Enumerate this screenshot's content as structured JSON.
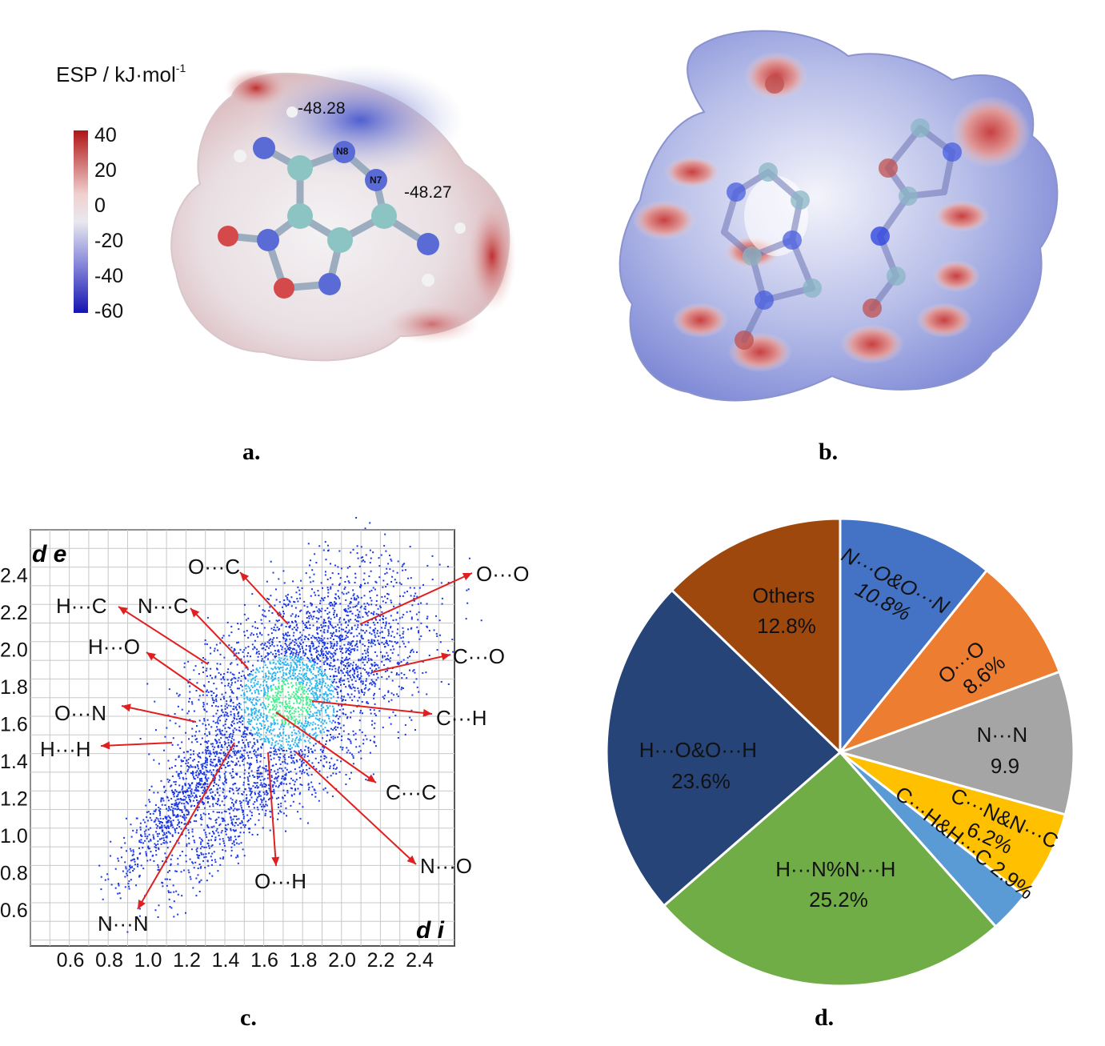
{
  "panel_a": {
    "scale_title": "ESP / kJ·mol",
    "scale_title_sup": "-1",
    "scale_ticks": [
      "40",
      "20",
      "0",
      "-20",
      "-40",
      "-60"
    ],
    "value_top": "-48.28",
    "value_right": "-48.27",
    "atom_n8": "N8",
    "atom_n7": "N7",
    "caption": "a."
  },
  "panel_b": {
    "caption": "b."
  },
  "panel_c": {
    "caption": "c.",
    "y_axis_label": "d e",
    "x_axis_label": "d i",
    "x_ticks": [
      "0.6",
      "0.8",
      "1.0",
      "1.2",
      "1.4",
      "1.6",
      "1.8",
      "2.0",
      "2.2",
      "2.4"
    ],
    "y_ticks": [
      "2.4",
      "2.2",
      "2.0",
      "1.8",
      "1.6",
      "1.4",
      "1.2",
      "1.0",
      "0.8",
      "0.6"
    ],
    "labels": [
      "O···C",
      "O···O",
      "H···C",
      "N···C",
      "H···O",
      "C···O",
      "O···N",
      "C···H",
      "H···H",
      "C···C",
      "N···O",
      "O···H",
      "N···N"
    ]
  },
  "panel_d": {
    "caption": "d."
  },
  "chart_data": {
    "type": "pie",
    "slices": [
      {
        "label_lines": [
          "N···O&O···N",
          "10.8%"
        ],
        "value": 10.8,
        "color": "#4472c4"
      },
      {
        "label_lines": [
          "O···O",
          "8.6%"
        ],
        "value": 8.6,
        "color": "#ed7d31"
      },
      {
        "label_lines": [
          "N···N",
          "9.9"
        ],
        "value": 9.9,
        "color": "#a5a5a5"
      },
      {
        "label_lines": [
          "C···N&N···C",
          "6.2%"
        ],
        "value": 6.2,
        "color": "#ffc000"
      },
      {
        "label_lines": [
          "C···H&H···C 2.9%"
        ],
        "value": 2.9,
        "color": "#5b9bd5"
      },
      {
        "label_lines": [
          "H···N%N···H",
          "25.2%"
        ],
        "value": 25.2,
        "color": "#70ad47"
      },
      {
        "label_lines": [
          "H···O&O···H",
          "23.6%"
        ],
        "value": 23.6,
        "color": "#264478"
      },
      {
        "label_lines": [
          "Others",
          "12.8%"
        ],
        "value": 12.8,
        "color": "#9e480e"
      }
    ]
  }
}
